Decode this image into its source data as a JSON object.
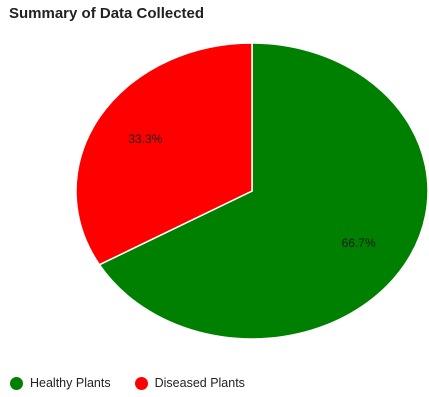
{
  "chart_data": {
    "type": "pie",
    "title": "Summary of Data Collected",
    "slices": [
      {
        "label": "Healthy Plants",
        "value": 66.7,
        "display": "66.7%",
        "color": "#008000"
      },
      {
        "label": "Diseased Plants",
        "value": 33.3,
        "display": "33.3%",
        "color": "#ff0000"
      }
    ],
    "legend_position": "bottom-left"
  }
}
